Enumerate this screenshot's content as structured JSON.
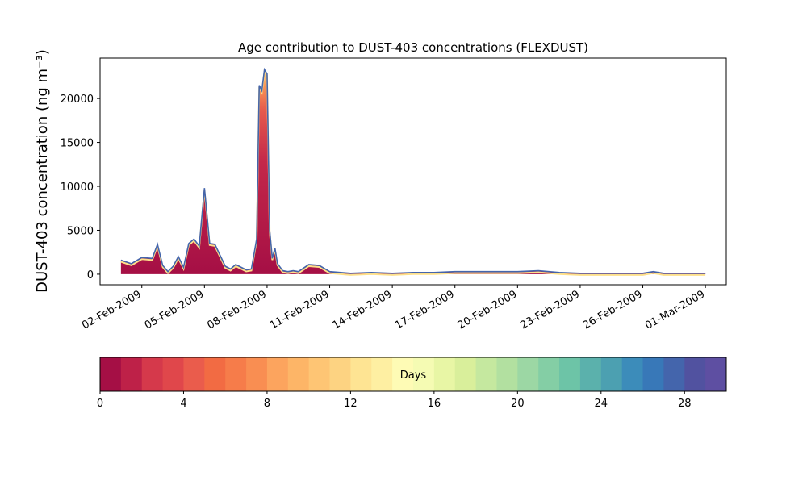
{
  "chart_data": {
    "type": "area",
    "title": "Age contribution to DUST-403 concentrations (FLEXDUST)",
    "xlabel": "",
    "ylabel": "DUST-403 concentration (ng m⁻³)",
    "x_tick_labels": [
      "02-Feb-2009",
      "05-Feb-2009",
      "08-Feb-2009",
      "11-Feb-2009",
      "14-Feb-2009",
      "17-Feb-2009",
      "20-Feb-2009",
      "23-Feb-2009",
      "26-Feb-2009",
      "01-Mar-2009"
    ],
    "x_range": [
      "2009-01-31",
      "2009-03-02"
    ],
    "y_ticks": [
      0,
      5000,
      10000,
      15000,
      20000
    ],
    "ylim": [
      -1200,
      24600
    ],
    "grid": false,
    "stack_note": "stacked contributions by age class (0-30 days); outer envelope = total",
    "total_series": {
      "name": "",
      "x": [
        "2009-02-01",
        "2009-02-01T12:00",
        "2009-02-02",
        "2009-02-02T12:00",
        "2009-02-02T18:00",
        "2009-02-03",
        "2009-02-03T06:00",
        "2009-02-03T12:00",
        "2009-02-03T18:00",
        "2009-02-04",
        "2009-02-04T06:00",
        "2009-02-04T12:00",
        "2009-02-04T18:00",
        "2009-02-05",
        "2009-02-05T06:00",
        "2009-02-05T12:00",
        "2009-02-06",
        "2009-02-06T06:00",
        "2009-02-06T12:00",
        "2009-02-07",
        "2009-02-07T06:00",
        "2009-02-07T12:00",
        "2009-02-07T15:00",
        "2009-02-07T18:00",
        "2009-02-07T21:00",
        "2009-02-08",
        "2009-02-08T03:00",
        "2009-02-08T06:00",
        "2009-02-08T09:00",
        "2009-02-08T12:00",
        "2009-02-08T18:00",
        "2009-02-09",
        "2009-02-09T06:00",
        "2009-02-09T12:00",
        "2009-02-10",
        "2009-02-10T12:00",
        "2009-02-11",
        "2009-02-12",
        "2009-02-13",
        "2009-02-14",
        "2009-02-15",
        "2009-02-16",
        "2009-02-17",
        "2009-02-18",
        "2009-02-19",
        "2009-02-20",
        "2009-02-21",
        "2009-02-22",
        "2009-02-23",
        "2009-02-24",
        "2009-02-25",
        "2009-02-26",
        "2009-02-26T12:00",
        "2009-02-27",
        "2009-02-28",
        "2009-03-01"
      ],
      "values": [
        1600,
        1200,
        1900,
        1800,
        3400,
        1000,
        300,
        900,
        2000,
        800,
        3500,
        4000,
        3200,
        9800,
        3500,
        3400,
        900,
        600,
        1100,
        500,
        600,
        4000,
        21500,
        20900,
        23300,
        22800,
        5000,
        1800,
        3000,
        1200,
        400,
        300,
        400,
        300,
        1100,
        1000,
        300,
        100,
        200,
        100,
        200,
        200,
        300,
        300,
        300,
        300,
        400,
        200,
        100,
        100,
        100,
        100,
        300,
        100,
        100,
        100
      ]
    },
    "colorbar": {
      "label": "Days",
      "min": 0,
      "max": 30,
      "ticks": [
        0,
        4,
        8,
        12,
        16,
        20,
        24,
        28
      ],
      "colors": [
        "#a50f45",
        "#be2148",
        "#d5394b",
        "#e0474b",
        "#ea5c4c",
        "#f26b43",
        "#f67c4a",
        "#f98e52",
        "#fca45e",
        "#fdb567",
        "#fec574",
        "#fdd382",
        "#fee493",
        "#feefa2",
        "#fefbb5",
        "#f5fbb3",
        "#e8f6a5",
        "#d9ef9b",
        "#c5e89f",
        "#b2e0a0",
        "#9cd7a4",
        "#84cea5",
        "#6dc4a7",
        "#5bb1ac",
        "#4ca0b1",
        "#3c8cba",
        "#3878b8",
        "#4465ac",
        "#5152a0",
        "#5e4fa2"
      ]
    }
  }
}
